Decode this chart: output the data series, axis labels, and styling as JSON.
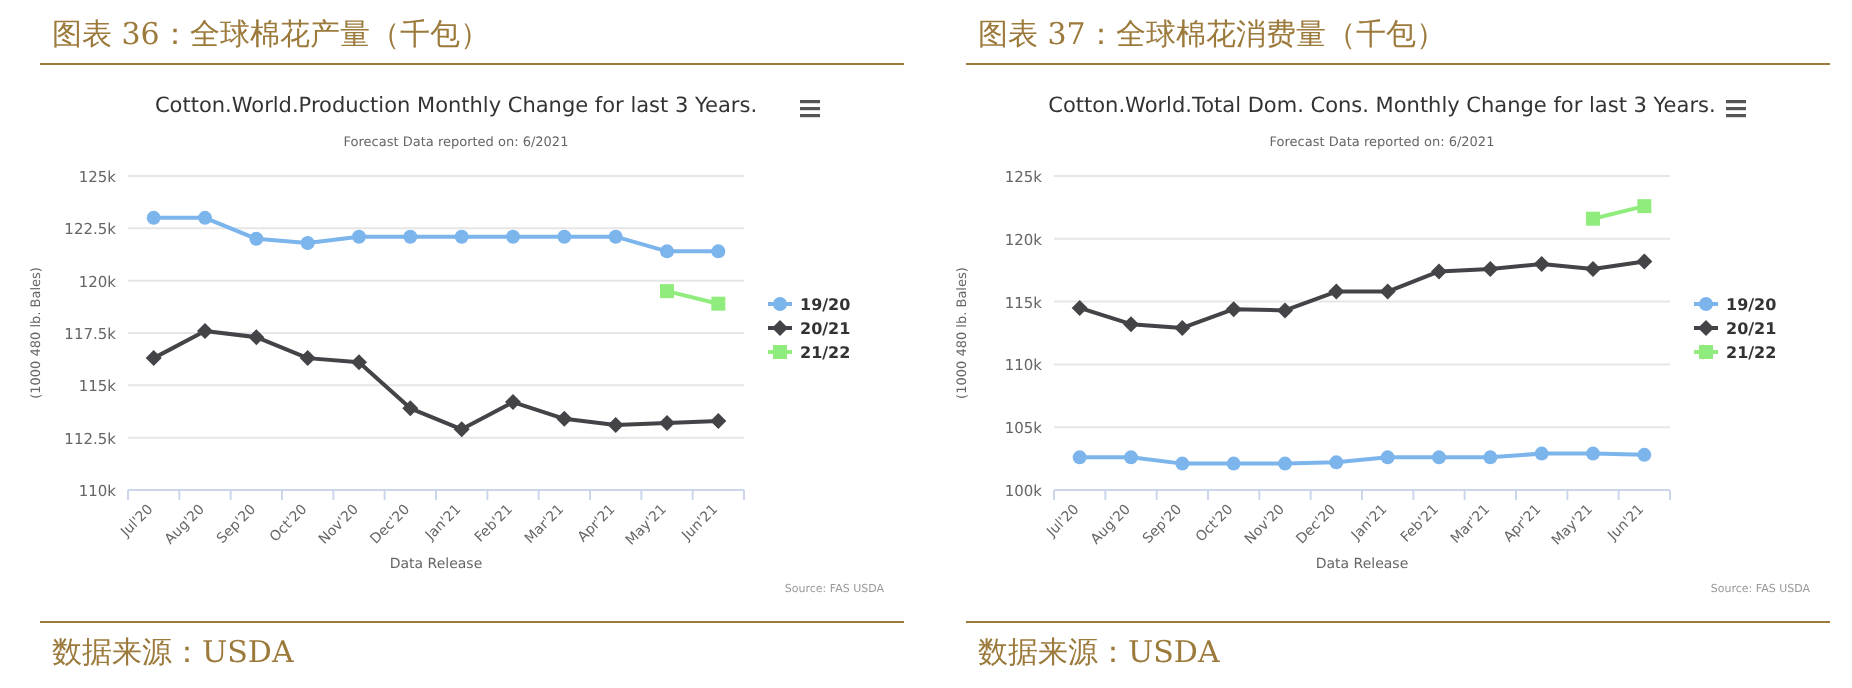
{
  "chart_data": [
    {
      "type": "line",
      "title": "Cotton.World.Production Monthly Change for last 3 Years.",
      "subtitle": "Forecast Data reported on: 6/2021",
      "xlabel": "Data Release",
      "ylabel": "(1000 480 lb. Bales)",
      "annotations": [
        "图表 36：全球棉花产量（千包）",
        "Source: FAS USDA",
        "数据来源：USDA"
      ],
      "categories": [
        "Jul'20",
        "Aug'20",
        "Sep'20",
        "Oct'20",
        "Nov'20",
        "Dec'20",
        "Jan'21",
        "Feb'21",
        "Mar'21",
        "Apr'21",
        "May'21",
        "Jun'21"
      ],
      "series": [
        {
          "name": "19/20",
          "color": "#7cb5ec",
          "marker": "circle",
          "values": [
            123000,
            123000,
            122000,
            121800,
            122100,
            122100,
            122100,
            122100,
            122100,
            122100,
            121400,
            121400
          ]
        },
        {
          "name": "20/21",
          "color": "#434348",
          "marker": "diamond",
          "values": [
            116300,
            117600,
            117300,
            116300,
            116100,
            113900,
            112900,
            114200,
            113400,
            113100,
            113200,
            113300
          ]
        },
        {
          "name": "21/22",
          "color": "#90ed7d",
          "marker": "square",
          "values": [
            null,
            null,
            null,
            null,
            null,
            null,
            null,
            null,
            null,
            null,
            119500,
            118900
          ]
        }
      ],
      "ylim": [
        110000,
        125000
      ],
      "yticks": [
        {
          "value": 110000,
          "label": "110k"
        },
        {
          "value": 112500,
          "label": "112.5k"
        },
        {
          "value": 115000,
          "label": "115k"
        },
        {
          "value": 117500,
          "label": "117.5k"
        },
        {
          "value": 120000,
          "label": "120k"
        },
        {
          "value": 122500,
          "label": "122.5k"
        },
        {
          "value": 125000,
          "label": "125k"
        }
      ],
      "grid": "y",
      "legend": "right"
    },
    {
      "type": "line",
      "title": "Cotton.World.Total Dom. Cons. Monthly Change for last 3 Years.",
      "subtitle": "Forecast Data reported on: 6/2021",
      "xlabel": "Data Release",
      "ylabel": "(1000 480 lb. Bales)",
      "annotations": [
        "图表 37：全球棉花消费量（千包）",
        "Source: FAS USDA",
        "数据来源：USDA"
      ],
      "categories": [
        "Jul'20",
        "Aug'20",
        "Sep'20",
        "Oct'20",
        "Nov'20",
        "Dec'20",
        "Jan'21",
        "Feb'21",
        "Mar'21",
        "Apr'21",
        "May'21",
        "Jun'21"
      ],
      "series": [
        {
          "name": "19/20",
          "color": "#7cb5ec",
          "marker": "circle",
          "values": [
            102600,
            102600,
            102100,
            102100,
            102100,
            102200,
            102600,
            102600,
            102600,
            102900,
            102900,
            102800
          ]
        },
        {
          "name": "20/21",
          "color": "#434348",
          "marker": "diamond",
          "values": [
            114500,
            113200,
            112900,
            114400,
            114300,
            115800,
            115800,
            117400,
            117600,
            118000,
            117600,
            118200
          ]
        },
        {
          "name": "21/22",
          "color": "#90ed7d",
          "marker": "square",
          "values": [
            null,
            null,
            null,
            null,
            null,
            null,
            null,
            null,
            null,
            null,
            121600,
            122600
          ]
        }
      ],
      "ylim": [
        100000,
        125000
      ],
      "yticks": [
        {
          "value": 100000,
          "label": "100k"
        },
        {
          "value": 105000,
          "label": "105k"
        },
        {
          "value": 110000,
          "label": "110k"
        },
        {
          "value": 115000,
          "label": "115k"
        },
        {
          "value": 120000,
          "label": "120k"
        },
        {
          "value": 125000,
          "label": "125k"
        }
      ],
      "grid": "y",
      "legend": "right"
    }
  ]
}
